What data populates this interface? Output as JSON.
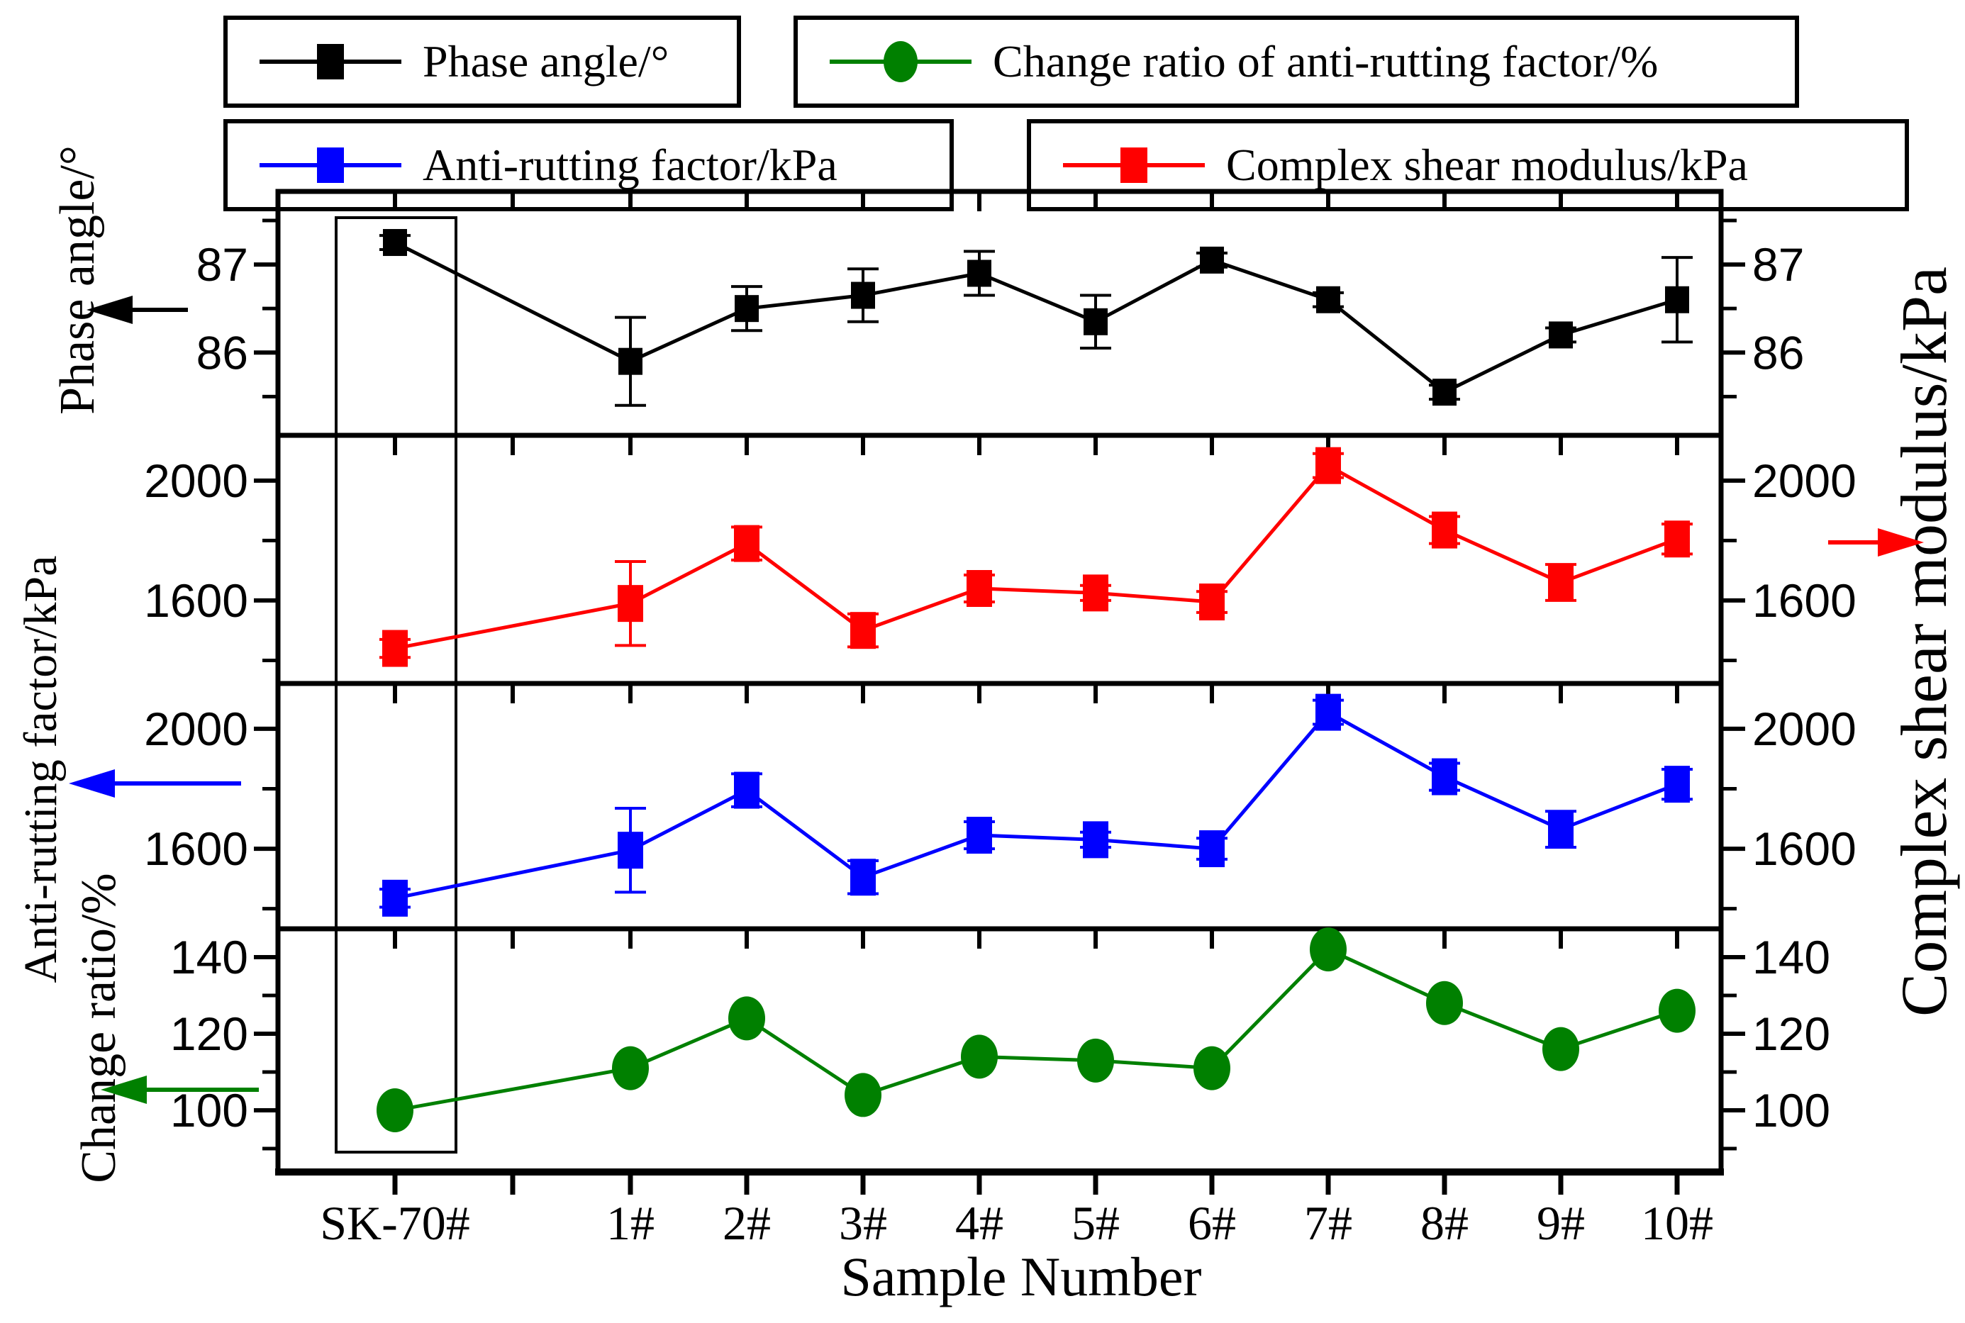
{
  "legend": {
    "items": [
      {
        "label": "Phase angle/°",
        "color": "#000000",
        "marker": "square"
      },
      {
        "label": "Change ratio of anti-rutting factor/%",
        "color": "#008000",
        "marker": "circle"
      },
      {
        "label": "Anti-rutting factor/kPa",
        "color": "#0000ff",
        "marker": "square"
      },
      {
        "label": "Complex shear modulus/kPa",
        "color": "#ff0000",
        "marker": "square"
      }
    ]
  },
  "axis_titles": {
    "x": "Sample Number",
    "left_top": "Phase angle/°",
    "left_middle": "Anti-rutting factor/kPa",
    "left_bottom": "Change ratio/%",
    "right": "Complex shear modulus/kPa"
  },
  "chart_data": {
    "type": "line",
    "x_axis_title": "Sample Number",
    "categories": [
      "SK-70#",
      "1#",
      "2#",
      "3#",
      "4#",
      "5#",
      "6#",
      "7#",
      "8#",
      "9#",
      "10#"
    ],
    "highlighted_category": "SK-70#",
    "grid": false,
    "legend_position": "top",
    "panels": [
      {
        "name": "Phase angle",
        "y_unit": "°",
        "ylim": [
          85.06,
          87.83
        ],
        "yticks_major": [
          87,
          86
        ],
        "yticks_minor": [
          87.5,
          86.5,
          85.5
        ],
        "tick_labels": [
          "87",
          "86"
        ],
        "axis_arrow": {
          "side": "left",
          "color": "#000000"
        },
        "series": [
          {
            "name": "Phase angle/°",
            "color": "#000000",
            "marker": "square",
            "values": [
              87.25,
              85.9,
              86.5,
              86.65,
              86.9,
              86.35,
              87.05,
              86.6,
              85.55,
              86.2,
              86.6
            ],
            "errors": [
              0.08,
              0.5,
              0.25,
              0.3,
              0.25,
              0.3,
              0.08,
              0.08,
              0.08,
              0.08,
              0.48
            ]
          }
        ]
      },
      {
        "name": "Complex shear modulus",
        "y_unit": "kPa",
        "ylim": [
          1323,
          2151
        ],
        "yticks_major": [
          2000,
          1600
        ],
        "yticks_minor": [
          1800,
          1400
        ],
        "tick_labels": [
          "2000",
          "1600"
        ],
        "axis_arrow": {
          "side": "right",
          "color": "#ff0000"
        },
        "series": [
          {
            "name": "Complex shear modulus/kPa",
            "color": "#ff0000",
            "marker": "square",
            "values": [
              1440,
              1590,
              1790,
              1500,
              1640,
              1625,
              1595,
              2050,
              1835,
              1660,
              1805
            ],
            "errors": [
              30,
              140,
              55,
              55,
              45,
              25,
              35,
              40,
              45,
              60,
              50
            ]
          }
        ]
      },
      {
        "name": "Anti-rutting factor",
        "y_unit": "kPa",
        "ylim": [
          1333,
          2151
        ],
        "yticks_major": [
          2000,
          1600
        ],
        "yticks_minor": [
          1800,
          1400
        ],
        "tick_labels": [
          "2000",
          "1600"
        ],
        "axis_arrow": {
          "side": "left",
          "color": "#0000ff"
        },
        "series": [
          {
            "name": "Anti-rutting factor/kPa",
            "color": "#0000ff",
            "marker": "square",
            "values": [
              1435,
              1595,
              1795,
              1505,
              1645,
              1630,
              1600,
              2055,
              1840,
              1665,
              1815
            ],
            "errors": [
              30,
              140,
              55,
              55,
              45,
              25,
              35,
              40,
              45,
              60,
              50
            ]
          }
        ]
      },
      {
        "name": "Change ratio of anti-rutting factor",
        "y_unit": "%",
        "ylim": [
          83.9,
          147.4
        ],
        "yticks_major": [
          140,
          120,
          100
        ],
        "yticks_minor": [
          130,
          110,
          90
        ],
        "tick_labels": [
          "140",
          "120",
          "100"
        ],
        "axis_arrow": {
          "side": "left",
          "color": "#008000"
        },
        "series": [
          {
            "name": "Change ratio of anti-rutting factor/%",
            "color": "#008000",
            "marker": "circle",
            "values": [
              100,
              111,
              124,
              104,
              114,
              113,
              111,
              142,
              128,
              116,
              126
            ],
            "errors": [
              0,
              0,
              0,
              0,
              0,
              0,
              0,
              0,
              0,
              0,
              0
            ]
          }
        ]
      }
    ]
  }
}
